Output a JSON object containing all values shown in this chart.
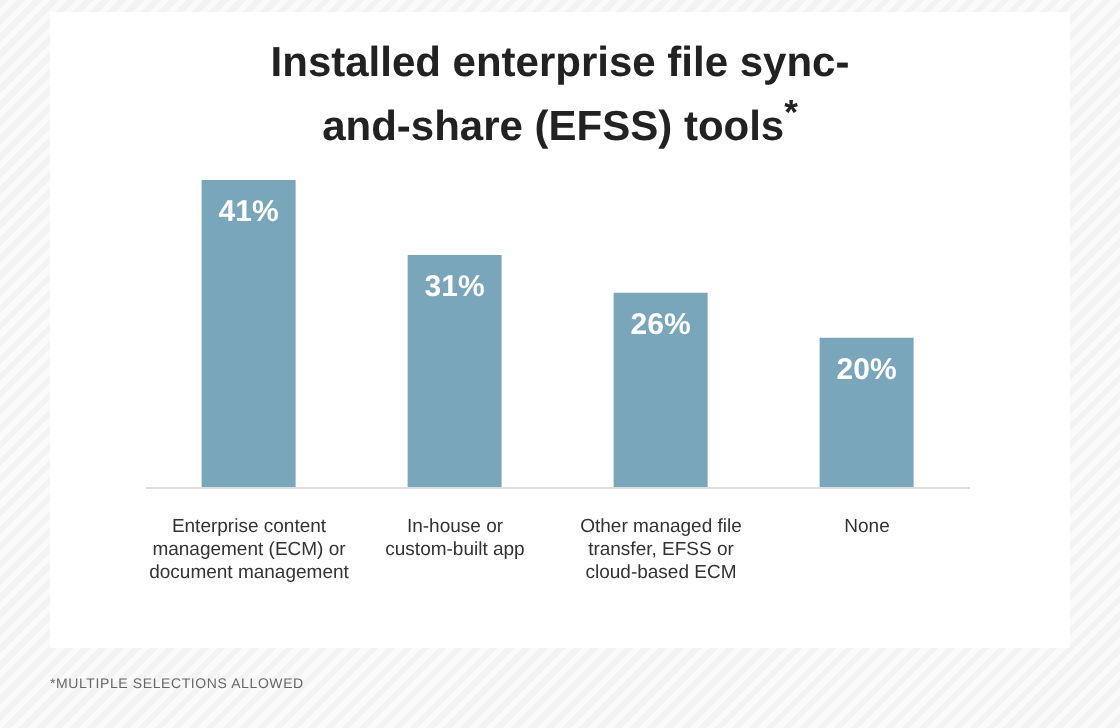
{
  "chart_data": {
    "type": "bar",
    "title": "Installed enterprise file sync-and-share (EFSS) tools$^{*}$",
    "categories": [
      "Enterprise content management (ECM) or document management",
      "In-house or custom-built app",
      "Other managed file transfer, EFSS or cloud-based ECM",
      "None"
    ],
    "values": [
      41,
      31,
      26,
      20
    ],
    "color": "#7aa6bb",
    "data_labels": true,
    "value_labels": [
      "41%",
      "31%",
      "26%",
      "20%"
    ],
    "tick_labels": "x",
    "annotations": [
      "*MULTIPLE SELECTIONS ALLOWED"
    ]
  }
}
